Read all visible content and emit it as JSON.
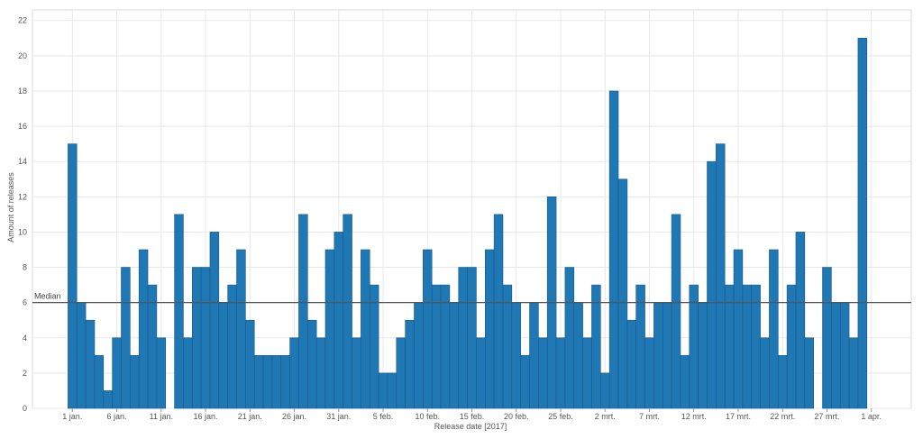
{
  "chart_data": {
    "type": "bar",
    "xlabel": "Release date [2017]",
    "ylabel": "Amount of releases",
    "ylim": [
      0,
      22.6
    ],
    "y_ticks": [
      0,
      2,
      4,
      6,
      8,
      10,
      12,
      14,
      16,
      18,
      20,
      22
    ],
    "x_ticks": [
      {
        "label": "1 jan.",
        "day": 1
      },
      {
        "label": "6 jan.",
        "day": 6
      },
      {
        "label": "11 jan.",
        "day": 11
      },
      {
        "label": "16 jan.",
        "day": 16
      },
      {
        "label": "21 jan.",
        "day": 21
      },
      {
        "label": "26 jan.",
        "day": 26
      },
      {
        "label": "31 jan.",
        "day": 31
      },
      {
        "label": "5 feb.",
        "day": 36
      },
      {
        "label": "10 feb.",
        "day": 41
      },
      {
        "label": "15 feb.",
        "day": 46
      },
      {
        "label": "20 feb.",
        "day": 51
      },
      {
        "label": "25 feb.",
        "day": 56
      },
      {
        "label": "2 mrt.",
        "day": 61
      },
      {
        "label": "7 mrt.",
        "day": 66
      },
      {
        "label": "12 mrt.",
        "day": 71
      },
      {
        "label": "17 mrt.",
        "day": 76
      },
      {
        "label": "22 mrt.",
        "day": 81
      },
      {
        "label": "27 mrt.",
        "day": 86
      },
      {
        "label": "1 apr.",
        "day": 91
      }
    ],
    "x_range": [
      -3.5,
      95.5
    ],
    "values": [
      15,
      6,
      5,
      3,
      1,
      4,
      8,
      3,
      9,
      7,
      4,
      0,
      11,
      4,
      8,
      8,
      10,
      6,
      7,
      9,
      5,
      3,
      3,
      3,
      3,
      4,
      11,
      5,
      4,
      9,
      10,
      11,
      4,
      9,
      7,
      2,
      2,
      4,
      5,
      6,
      9,
      7,
      7,
      6,
      8,
      8,
      4,
      9,
      11,
      7,
      6,
      3,
      6,
      4,
      12,
      4,
      8,
      6,
      4,
      7,
      2,
      18,
      13,
      5,
      7,
      4,
      6,
      6,
      11,
      3,
      7,
      6,
      14,
      15,
      7,
      9,
      7,
      7,
      4,
      9,
      3,
      7,
      10,
      4,
      0,
      8,
      6,
      6,
      4,
      21
    ],
    "median": 6,
    "median_label": "Median",
    "grid": true,
    "colors": {
      "bar": "#1f77b4",
      "median": "#555555"
    }
  }
}
